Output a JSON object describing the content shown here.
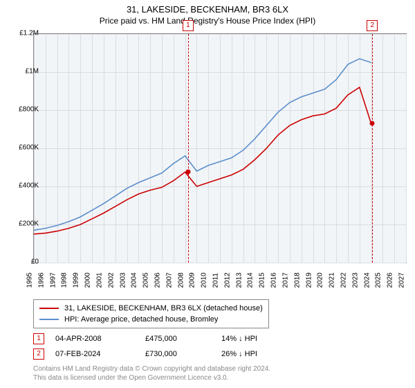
{
  "title": "31, LAKESIDE, BECKENHAM, BR3 6LX",
  "subtitle": "Price paid vs. HM Land Registry's House Price Index (HPI)",
  "chart": {
    "type": "line",
    "background_color": "#f2f5f8",
    "grid_color": "#d8dde2",
    "border_color": "#888888",
    "x_min": 1995,
    "x_max": 2027,
    "y_min": 0,
    "y_max": 1200000,
    "y_ticks": [
      0,
      200000,
      400000,
      600000,
      800000,
      1000000,
      1200000
    ],
    "y_tick_labels": [
      "£0",
      "£200K",
      "£400K",
      "£600K",
      "£800K",
      "£1M",
      "£1.2M"
    ],
    "x_ticks": [
      1995,
      1996,
      1997,
      1998,
      1999,
      2000,
      2001,
      2002,
      2003,
      2004,
      2005,
      2006,
      2007,
      2008,
      2009,
      2010,
      2011,
      2012,
      2013,
      2014,
      2015,
      2016,
      2017,
      2018,
      2019,
      2020,
      2021,
      2022,
      2023,
      2024,
      2025,
      2026,
      2027
    ],
    "label_fontsize": 10,
    "line_width": 1.6,
    "series": [
      {
        "name": "property",
        "label": "31, LAKESIDE, BECKENHAM, BR3 6LX (detached house)",
        "color": "#cc0000",
        "y": [
          150000,
          155000,
          165000,
          180000,
          200000,
          230000,
          260000,
          295000,
          330000,
          360000,
          380000,
          395000,
          430000,
          475000,
          400000,
          420000,
          440000,
          460000,
          490000,
          540000,
          600000,
          670000,
          720000,
          750000,
          770000,
          780000,
          810000,
          880000,
          920000,
          730000
        ]
      },
      {
        "name": "hpi",
        "label": "HPI: Average price, detached house, Bromley",
        "color": "#5b8ecb",
        "y": [
          170000,
          180000,
          195000,
          215000,
          240000,
          275000,
          310000,
          350000,
          390000,
          420000,
          445000,
          470000,
          520000,
          560000,
          480000,
          510000,
          530000,
          550000,
          590000,
          650000,
          720000,
          790000,
          840000,
          870000,
          890000,
          910000,
          960000,
          1040000,
          1070000,
          1050000
        ]
      }
    ],
    "series_x": [
      1995,
      1996,
      1997,
      1998,
      1999,
      2000,
      2001,
      2002,
      2003,
      2004,
      2005,
      2006,
      2007,
      2008,
      2009,
      2010,
      2011,
      2012,
      2013,
      2014,
      2015,
      2016,
      2017,
      2018,
      2019,
      2020,
      2021,
      2022,
      2023,
      2024
    ],
    "markers": [
      {
        "id": "1",
        "x": 2008.26,
        "price": 475000,
        "dot_color": "#cc0000"
      },
      {
        "id": "2",
        "x": 2024.1,
        "price": 730000,
        "dot_color": "#cc0000"
      }
    ]
  },
  "legend_items": [
    {
      "color": "#cc0000",
      "label": "31, LAKESIDE, BECKENHAM, BR3 6LX (detached house)"
    },
    {
      "color": "#5b8ecb",
      "label": "HPI: Average price, detached house, Bromley"
    }
  ],
  "events": [
    {
      "id": "1",
      "date": "04-APR-2008",
      "price": "£475,000",
      "delta": "14% ↓ HPI"
    },
    {
      "id": "2",
      "date": "07-FEB-2024",
      "price": "£730,000",
      "delta": "26% ↓ HPI"
    }
  ],
  "footer_line1": "Contains HM Land Registry data © Crown copyright and database right 2024.",
  "footer_line2": "This data is licensed under the Open Government Licence v3.0."
}
